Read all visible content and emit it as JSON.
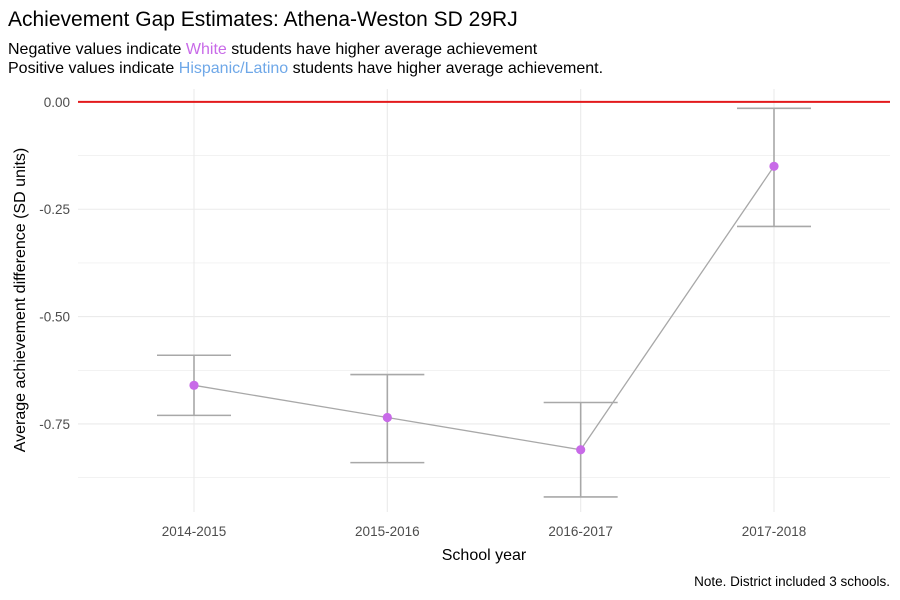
{
  "title": "Achievement Gap Estimates: Athena-Weston SD 29RJ",
  "subtitle": {
    "line1": {
      "before": "Negative values indicate ",
      "highlight": "White",
      "after": " students have higher average achievement"
    },
    "line2": {
      "before": "Positive values indicate ",
      "highlight": "Hispanic/Latino",
      "after": " students have higher average achievement."
    }
  },
  "colors": {
    "white_group": "#c86ae8",
    "hispanic_group": "#6fa8e8",
    "zero_line": "#e31a1c",
    "series_line": "#a8a8a8",
    "errorbar": "#a8a8a8",
    "point": "#c86ae8",
    "grid": "#ebebeb"
  },
  "caption": "Note. District included 3 schools.",
  "chart_data": {
    "type": "line",
    "xlabel": "School year",
    "ylabel": "Average achievement difference (SD units)",
    "categories": [
      "2014-2015",
      "2015-2016",
      "2016-2017",
      "2017-2018"
    ],
    "values": [
      -0.66,
      -0.735,
      -0.81,
      -0.15
    ],
    "lower": [
      -0.73,
      -0.84,
      -0.92,
      -0.29
    ],
    "upper": [
      -0.59,
      -0.635,
      -0.7,
      -0.015
    ],
    "yticks": [
      "0.00",
      "-0.25",
      "-0.50",
      "-0.75"
    ],
    "ylim": [
      -0.955,
      0.03
    ],
    "reference_line": 0,
    "grid": true
  }
}
